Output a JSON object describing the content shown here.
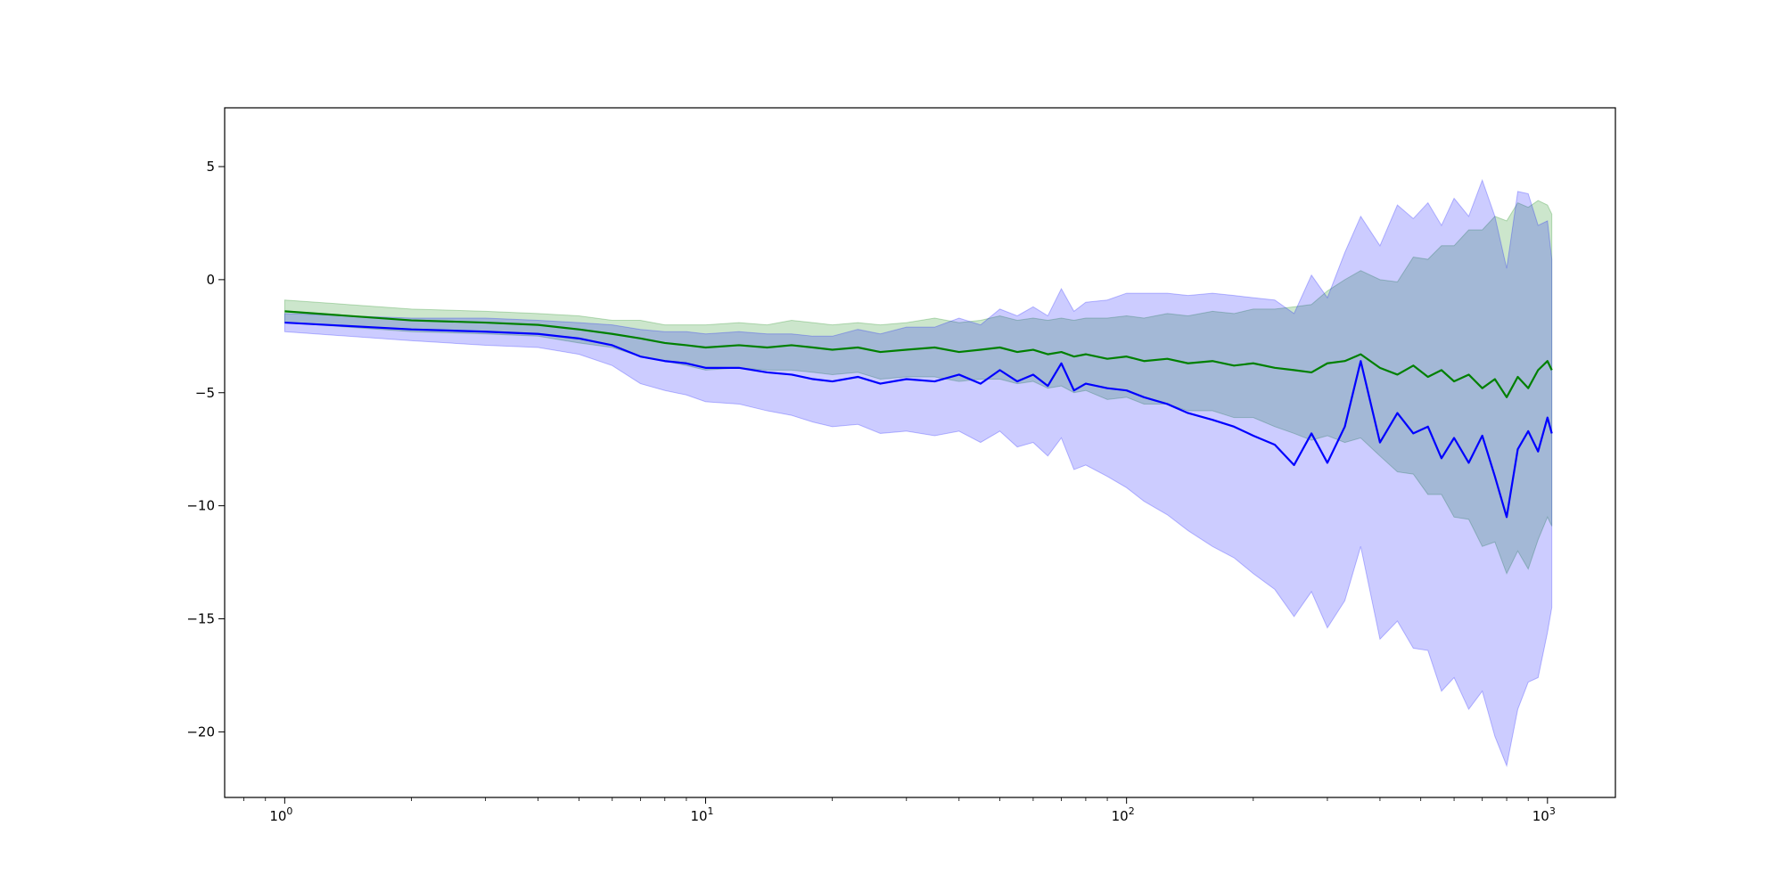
{
  "chart_data": {
    "type": "line",
    "title": "",
    "xlabel": "",
    "ylabel": "",
    "x_scale": "log",
    "xlim": [
      0.72,
      1450
    ],
    "ylim": [
      -22.9,
      7.6
    ],
    "grid": false,
    "legend": "none",
    "x_ticks": [
      {
        "value": 1,
        "base": "10",
        "exp": "0"
      },
      {
        "value": 10,
        "base": "10",
        "exp": "1"
      },
      {
        "value": 100,
        "base": "10",
        "exp": "2"
      },
      {
        "value": 1000,
        "base": "10",
        "exp": "3"
      }
    ],
    "y_ticks": [
      {
        "value": 5,
        "label": "5"
      },
      {
        "value": 0,
        "label": "0"
      },
      {
        "value": -5,
        "label": "−5"
      },
      {
        "value": -10,
        "label": "−10"
      },
      {
        "value": -15,
        "label": "−15"
      },
      {
        "value": -20,
        "label": "−20"
      }
    ],
    "x": [
      1,
      2,
      3,
      4,
      5,
      6,
      7,
      8,
      9,
      10,
      12,
      14,
      16,
      18,
      20,
      23,
      26,
      30,
      35,
      40,
      45,
      50,
      55,
      60,
      65,
      70,
      75,
      80,
      90,
      100,
      110,
      125,
      140,
      160,
      180,
      200,
      225,
      250,
      275,
      300,
      330,
      360,
      400,
      440,
      480,
      520,
      560,
      600,
      650,
      700,
      750,
      800,
      850,
      900,
      950,
      1000,
      1024
    ],
    "series": [
      {
        "color": "#008000",
        "band_color": "#008000",
        "values": [
          -1.4,
          -1.8,
          -1.9,
          -2.0,
          -2.2,
          -2.4,
          -2.6,
          -2.8,
          -2.9,
          -3.0,
          -2.9,
          -3.0,
          -2.9,
          -3.0,
          -3.1,
          -3.0,
          -3.2,
          -3.1,
          -3.0,
          -3.2,
          -3.1,
          -3.0,
          -3.2,
          -3.1,
          -3.3,
          -3.2,
          -3.4,
          -3.3,
          -3.5,
          -3.4,
          -3.6,
          -3.5,
          -3.7,
          -3.6,
          -3.8,
          -3.7,
          -3.9,
          -4.0,
          -4.1,
          -3.7,
          -3.6,
          -3.3,
          -3.9,
          -4.2,
          -3.8,
          -4.3,
          -4.0,
          -4.5,
          -4.2,
          -4.8,
          -4.4,
          -5.2,
          -4.3,
          -4.8,
          -4.0,
          -3.6,
          -4.0
        ],
        "lower": [
          -1.9,
          -2.3,
          -2.4,
          -2.5,
          -2.8,
          -3.0,
          -3.4,
          -3.6,
          -3.8,
          -4.0,
          -3.9,
          -4.0,
          -4.0,
          -4.1,
          -4.2,
          -4.1,
          -4.4,
          -4.3,
          -4.3,
          -4.5,
          -4.4,
          -4.4,
          -4.6,
          -4.5,
          -4.8,
          -4.7,
          -5.0,
          -4.9,
          -5.3,
          -5.2,
          -5.5,
          -5.5,
          -5.8,
          -5.8,
          -6.1,
          -6.1,
          -6.5,
          -6.8,
          -7.1,
          -6.9,
          -7.2,
          -7.0,
          -7.8,
          -8.5,
          -8.6,
          -9.5,
          -9.5,
          -10.5,
          -10.6,
          -11.8,
          -11.6,
          -13.0,
          -12.0,
          -12.8,
          -11.5,
          -10.5,
          -10.9
        ],
        "upper": [
          -0.9,
          -1.3,
          -1.4,
          -1.5,
          -1.6,
          -1.8,
          -1.8,
          -2.0,
          -2.0,
          -2.0,
          -1.9,
          -2.0,
          -1.8,
          -1.9,
          -2.0,
          -1.9,
          -2.0,
          -1.9,
          -1.7,
          -1.9,
          -1.8,
          -1.6,
          -1.8,
          -1.7,
          -1.8,
          -1.7,
          -1.8,
          -1.7,
          -1.7,
          -1.6,
          -1.7,
          -1.5,
          -1.6,
          -1.4,
          -1.5,
          -1.3,
          -1.3,
          -1.2,
          -1.1,
          -0.5,
          0.0,
          0.4,
          0.0,
          -0.1,
          1.0,
          0.9,
          1.5,
          1.5,
          2.2,
          2.2,
          2.8,
          2.6,
          3.4,
          3.2,
          3.5,
          3.3,
          2.9
        ]
      },
      {
        "color": "#0000ff",
        "band_color": "#0000ff",
        "values": [
          -1.9,
          -2.2,
          -2.3,
          -2.4,
          -2.6,
          -2.9,
          -3.4,
          -3.6,
          -3.7,
          -3.9,
          -3.9,
          -4.1,
          -4.2,
          -4.4,
          -4.5,
          -4.3,
          -4.6,
          -4.4,
          -4.5,
          -4.2,
          -4.6,
          -4.0,
          -4.5,
          -4.2,
          -4.7,
          -3.7,
          -4.9,
          -4.6,
          -4.8,
          -4.9,
          -5.2,
          -5.5,
          -5.9,
          -6.2,
          -6.5,
          -6.9,
          -7.3,
          -8.2,
          -6.8,
          -8.1,
          -6.5,
          -3.6,
          -7.2,
          -5.9,
          -6.8,
          -6.5,
          -7.9,
          -7.0,
          -8.1,
          -6.9,
          -8.7,
          -10.5,
          -7.5,
          -6.7,
          -7.6,
          -6.1,
          -6.8
        ],
        "lower": [
          -2.3,
          -2.7,
          -2.9,
          -3.0,
          -3.3,
          -3.8,
          -4.6,
          -4.9,
          -5.1,
          -5.4,
          -5.5,
          -5.8,
          -6.0,
          -6.3,
          -6.5,
          -6.4,
          -6.8,
          -6.7,
          -6.9,
          -6.7,
          -7.2,
          -6.7,
          -7.4,
          -7.2,
          -7.8,
          -7.0,
          -8.4,
          -8.2,
          -8.7,
          -9.2,
          -9.8,
          -10.4,
          -11.1,
          -11.8,
          -12.3,
          -13.0,
          -13.7,
          -14.9,
          -13.8,
          -15.4,
          -14.2,
          -11.8,
          -15.9,
          -15.1,
          -16.3,
          -16.4,
          -18.2,
          -17.6,
          -19.0,
          -18.2,
          -20.2,
          -21.5,
          -19.0,
          -17.8,
          -17.6,
          -15.6,
          -14.5
        ],
        "upper": [
          -1.5,
          -1.7,
          -1.7,
          -1.8,
          -1.9,
          -2.0,
          -2.2,
          -2.3,
          -2.3,
          -2.4,
          -2.3,
          -2.4,
          -2.4,
          -2.5,
          -2.5,
          -2.2,
          -2.4,
          -2.1,
          -2.1,
          -1.7,
          -2.0,
          -1.3,
          -1.6,
          -1.2,
          -1.6,
          -0.4,
          -1.4,
          -1.0,
          -0.9,
          -0.6,
          -0.6,
          -0.6,
          -0.7,
          -0.6,
          -0.7,
          -0.8,
          -0.9,
          -1.5,
          0.2,
          -0.8,
          1.2,
          2.8,
          1.5,
          3.3,
          2.7,
          3.4,
          2.4,
          3.6,
          2.8,
          4.4,
          2.8,
          0.5,
          3.9,
          3.8,
          2.4,
          2.6,
          0.9
        ]
      }
    ]
  }
}
